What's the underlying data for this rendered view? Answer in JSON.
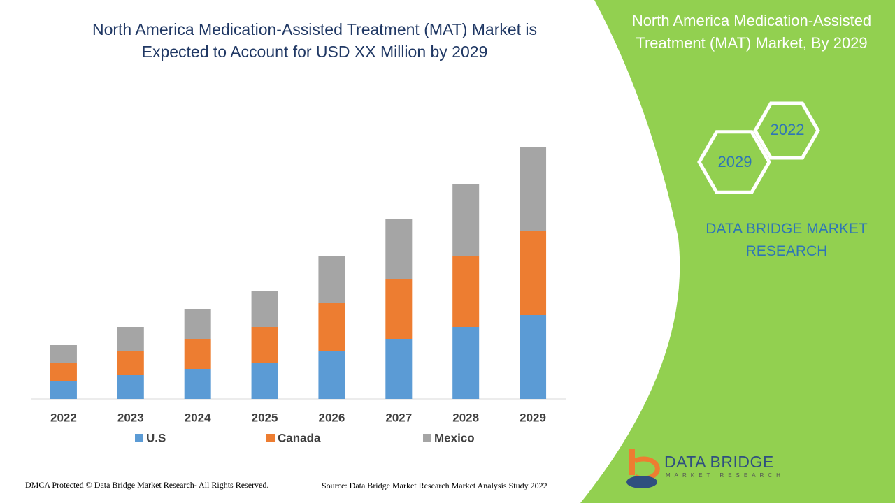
{
  "chart_data": {
    "type": "bar",
    "stacked": true,
    "title": "North America Medication-Assisted Treatment (MAT) Market is Expected to Account for USD XX Million by 2029",
    "categories": [
      "2022",
      "2023",
      "2024",
      "2025",
      "2026",
      "2027",
      "2028",
      "2029"
    ],
    "series": [
      {
        "name": "U.S",
        "color": "#5b9bd5",
        "values": [
          26,
          34,
          43,
          51,
          68,
          86,
          103,
          120
        ]
      },
      {
        "name": "Canada",
        "color": "#ed7d31",
        "values": [
          25,
          34,
          43,
          52,
          69,
          85,
          102,
          120
        ]
      },
      {
        "name": "Mexico",
        "color": "#a5a5a5",
        "values": [
          26,
          35,
          42,
          51,
          68,
          86,
          103,
          120
        ]
      }
    ]
  },
  "side_panel": {
    "title": "North America Medication-Assisted Treatment (MAT) Market, By 2029",
    "hex_labels": [
      "2022",
      "2029"
    ],
    "brand": "DATA BRIDGE MARKET RESEARCH"
  },
  "logo": {
    "name": "DATA BRIDGE",
    "tagline": "MARKET RESEARCH"
  },
  "footer": {
    "copyright": "DMCA Protected © Data Bridge Market Research- All Rights Reserved.",
    "source": "Source: Data Bridge Market Research Market Analysis Study 2022"
  }
}
